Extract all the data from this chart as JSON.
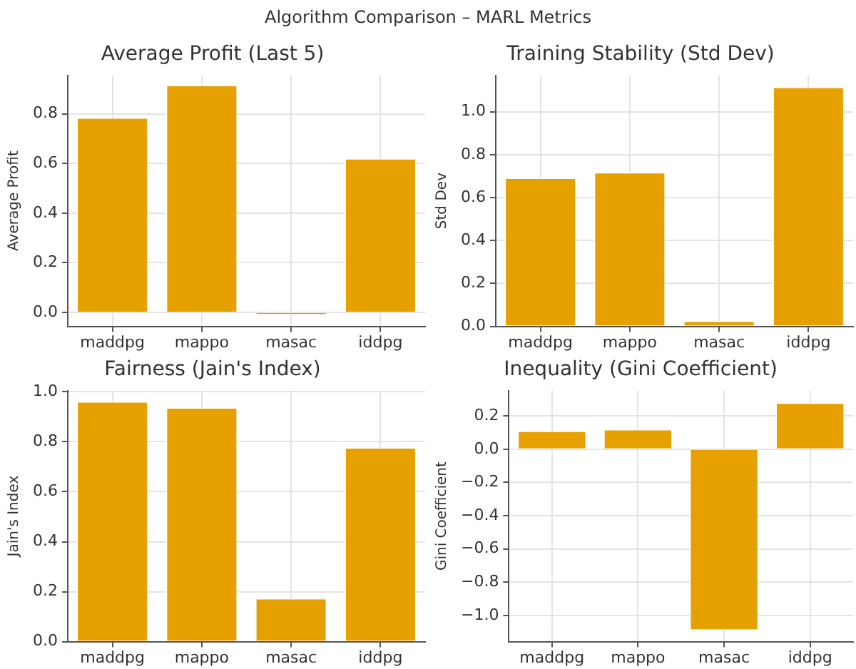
{
  "chart_data": [
    {
      "type": "bar",
      "annotations": [
        "Algorithm Comparison – MARL Metrics"
      ],
      "title": "Average Profit (Last 5)",
      "ylabel": "Average Profit",
      "categories": [
        "maddpg",
        "mappo",
        "masac",
        "iddpg"
      ],
      "values": [
        0.785,
        0.916,
        -0.01,
        0.62
      ],
      "color": "#e6a000",
      "ylim": [
        -0.056,
        0.955
      ],
      "yticks": [
        {
          "value": 0,
          "label": "0.0"
        },
        0.2,
        0.4,
        0.6,
        0.8
      ],
      "grid": true
    },
    {
      "type": "bar",
      "title": "Training Stability (Std Dev)",
      "ylabel": "Std Dev",
      "categories": [
        "maddpg",
        "mappo",
        "masac",
        "iddpg"
      ],
      "values": [
        0.692,
        0.718,
        0.026,
        1.116
      ],
      "color": "#e6a000",
      "ylim": [
        0,
        1.17
      ],
      "yticks": [
        {
          "value": 0,
          "label": "0.0"
        },
        0.2,
        0.4,
        0.6,
        0.8,
        {
          "value": 1,
          "label": "1.0"
        }
      ],
      "grid": true
    },
    {
      "type": "bar",
      "title": "Fairness (Jain's Index)",
      "ylabel": "Jain's Index",
      "categories": [
        "maddpg",
        "mappo",
        "masac",
        "iddpg"
      ],
      "values": [
        0.961,
        0.937,
        0.173,
        0.777
      ],
      "color": "#e6a000",
      "ylim": [
        0,
        1.005
      ],
      "yticks": [
        {
          "value": 0,
          "label": "0.0"
        },
        0.2,
        0.4,
        0.6,
        0.8,
        {
          "value": 1,
          "label": "1.0"
        }
      ],
      "grid": true
    },
    {
      "type": "bar",
      "title": "Inequality (Gini Coefficient)",
      "ylabel": "Gini Coefficient",
      "categories": [
        "maddpg",
        "mappo",
        "masac",
        "iddpg"
      ],
      "values": [
        0.11,
        0.12,
        -1.09,
        0.28
      ],
      "color": "#e6a000",
      "ylim": [
        -1.158,
        0.353
      ],
      "yticks": [
        {
          "value": -1,
          "label": "−1.0"
        },
        {
          "value": -0.8,
          "label": "−0.8"
        },
        {
          "value": -0.6,
          "label": "−0.6"
        },
        {
          "value": -0.4,
          "label": "−0.4"
        },
        {
          "value": -0.2,
          "label": "−0.2"
        },
        {
          "value": 0,
          "label": "0.0"
        },
        0.2
      ],
      "grid": true
    }
  ]
}
